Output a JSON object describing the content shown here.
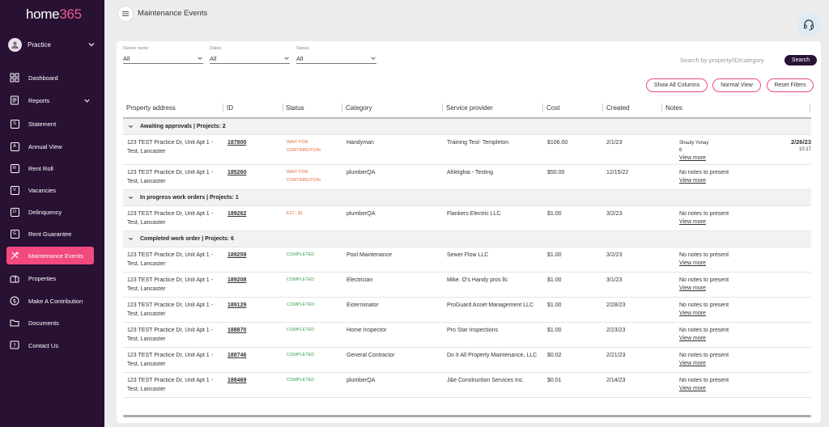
{
  "brand": {
    "logo_part1": "home",
    "logo_part2": "365"
  },
  "account": {
    "name": "Practice"
  },
  "nav": {
    "items": [
      {
        "key": "dashboard",
        "label": "Dashboard",
        "icon": "dashboard-icon"
      },
      {
        "key": "reports",
        "label": "Reports",
        "icon": "reports-icon"
      },
      {
        "key": "statement",
        "label": "Statement",
        "icon": "s-box-icon",
        "letter": "S"
      },
      {
        "key": "annual-view",
        "label": "Annual View",
        "icon": "a-box-icon",
        "letter": "A"
      },
      {
        "key": "rent-roll",
        "label": "Rent Roll",
        "icon": "r-box-icon",
        "letter": "R"
      },
      {
        "key": "vacancies",
        "label": "Vacancies",
        "icon": "v-box-icon",
        "letter": "V"
      },
      {
        "key": "delinquency",
        "label": "Delinquency",
        "icon": "d-box-icon",
        "letter": "D"
      },
      {
        "key": "rent-guarantee",
        "label": "Rent Guarantee",
        "icon": "g-box-icon",
        "letter": "G"
      },
      {
        "key": "maintenance-events",
        "label": "Maintenance Events",
        "icon": "tools-icon",
        "active": true
      },
      {
        "key": "properties",
        "label": "Properties",
        "icon": "properties-icon"
      },
      {
        "key": "make-contribution",
        "label": "Make A Contribution",
        "icon": "dollar-icon"
      },
      {
        "key": "documents",
        "label": "Documents",
        "icon": "folder-icon"
      },
      {
        "key": "contact-us",
        "label": "Contact Us",
        "icon": "help-icon"
      }
    ]
  },
  "header": {
    "title": "Maintenance Events"
  },
  "filters": {
    "owner": {
      "label": "Owner name",
      "value": "All"
    },
    "dates": {
      "label": "Dates",
      "value": "All"
    },
    "status": {
      "label": "Status",
      "value": "All"
    }
  },
  "search": {
    "placeholder": "Search by property/ID/category",
    "button": "Search"
  },
  "actions": {
    "show_all": "Show All Columns",
    "normal_view": "Normal View",
    "reset_filters": "Reset Filters"
  },
  "columns": [
    "Property address",
    "ID",
    "Status",
    "Category",
    "Service provider",
    "Cost",
    "Created",
    "Notes"
  ],
  "groups": [
    {
      "title": "Awaiting approvals  |  Projects: 2",
      "rows": [
        {
          "address": "123 TEST Practice Dr, Unit Apt 1 - Test, Lancaster",
          "id": "187800",
          "status": "WAIT FOR CONTRIBUTION",
          "status_type": "wait",
          "category": "Handyman",
          "provider": "Training Test- Templeton",
          "cost": "$106.00",
          "created": "2/1/23",
          "notes_author": "Shauly Yonay",
          "notes_text": "6",
          "view_more": "View more",
          "note_date": "2/26/23",
          "note_time": "10:17"
        },
        {
          "address": "123 TEST Practice Dr, Unit Apt 1 - Test, Lancaster",
          "id": "185260",
          "status": "WAIT FOR CONTRIBUTION",
          "status_type": "wait",
          "category": "plumberQA",
          "provider": "Ahleighia - Testing",
          "cost": "$50.00",
          "created": "12/15/22",
          "notes_text": "No notes to present",
          "view_more": "View more"
        }
      ]
    },
    {
      "title": "In progress work orders  |  Projects: 1",
      "rows": [
        {
          "address": "123 TEST Practice Dr, Unit Apt 1 - Test, Lancaster",
          "id": "189262",
          "status": "ECI - $1",
          "status_type": "prog",
          "category": "plumberQA",
          "provider": "Flankers Electric LLC",
          "cost": "$1.00",
          "created": "3/2/23",
          "notes_text": "No notes to present",
          "view_more": "View more"
        }
      ]
    },
    {
      "title": "Completed work order  |  Projects: 6",
      "rows": [
        {
          "address": "123 TEST Practice Dr, Unit Apt 1 - Test, Lancaster",
          "id": "189259",
          "status": "COMPLETED",
          "status_type": "done",
          "category": "Pool Maintenance",
          "provider": "Sewer Flow LLC",
          "cost": "$1.00",
          "created": "3/2/23",
          "notes_text": "No notes to present",
          "view_more": "View more"
        },
        {
          "address": "123 TEST Practice Dr, Unit Apt 1 - Test, Lancaster",
          "id": "189208",
          "status": "COMPLETED",
          "status_type": "done",
          "category": "Electrician",
          "provider": "Mike. O's Handy pros llc",
          "cost": "$1.00",
          "created": "3/1/23",
          "notes_text": "No notes to present",
          "view_more": "View more"
        },
        {
          "address": "123 TEST Practice Dr, Unit Apt 1 - Test, Lancaster",
          "id": "189129",
          "status": "COMPLETED",
          "status_type": "done",
          "category": "Exterminator",
          "provider": "ProGuard Asset Management LLC",
          "cost": "$1.00",
          "created": "2/28/23",
          "notes_text": "No notes to present",
          "view_more": "View more"
        },
        {
          "address": "123 TEST Practice Dr, Unit Apt 1 - Test, Lancaster",
          "id": "188870",
          "status": "COMPLETED",
          "status_type": "done",
          "category": "Home Inspector",
          "provider": "Pro Star Inspections",
          "cost": "$1.00",
          "created": "2/23/23",
          "notes_text": "No notes to present",
          "view_more": "View more"
        },
        {
          "address": "123 TEST Practice Dr, Unit Apt 1 - Test, Lancaster",
          "id": "188746",
          "status": "COMPLETED",
          "status_type": "done",
          "category": "General Contractor",
          "provider": "Do It All Property Maintenance, LLC",
          "cost": "$0.02",
          "created": "2/21/23",
          "notes_text": "No notes to present",
          "view_more": "View more"
        },
        {
          "address": "123 TEST Practice Dr, Unit Apt 1 - Test, Lancaster",
          "id": "188469",
          "status": "COMPLETED",
          "status_type": "done",
          "category": "plumberQA",
          "provider": "J&e Construction Services Inc.",
          "cost": "$0.01",
          "created": "2/14/23",
          "notes_text": "No notes to present",
          "view_more": "View more"
        }
      ]
    }
  ]
}
